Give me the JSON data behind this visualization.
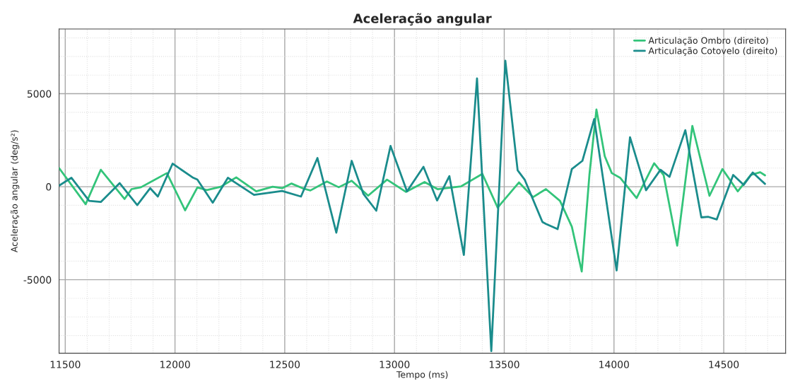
{
  "chart_data": {
    "type": "line",
    "title": "Aceleração angular",
    "xlabel": "Tempo (ms)",
    "ylabel": "Aceleração angular (deg/s²)",
    "xlim": [
      11472,
      14782
    ],
    "ylim": [
      -8950,
      8480
    ],
    "xticks": [
      11500,
      12000,
      12500,
      13000,
      13500,
      14000,
      14500
    ],
    "yticks": [
      -5000,
      0,
      5000
    ],
    "grid": true,
    "legend": "top right",
    "marker": "none",
    "line_style": "solid",
    "series": [
      {
        "name": "Articulação Ombro (direito)",
        "color": "#33c47a",
        "x": [
          11472,
          11593,
          11662,
          11770,
          11802,
          11845,
          11963,
          12046,
          12102,
          12145,
          12209,
          12279,
          12370,
          12445,
          12488,
          12531,
          12585,
          12617,
          12692,
          12746,
          12805,
          12880,
          12966,
          13052,
          13137,
          13196,
          13304,
          13400,
          13470,
          13567,
          13631,
          13690,
          13754,
          13808,
          13853,
          13888,
          13920,
          13958,
          13990,
          14028,
          14103,
          14183,
          14226,
          14288,
          14357,
          14435,
          14494,
          14564,
          14623,
          14666,
          14688
        ],
        "values": [
          1000,
          -940,
          910,
          -660,
          -130,
          -30,
          730,
          -1270,
          -40,
          -180,
          0,
          500,
          -250,
          0,
          -80,
          170,
          -100,
          -200,
          280,
          -30,
          320,
          -480,
          380,
          -280,
          250,
          -130,
          20,
          690,
          -1120,
          230,
          -560,
          -130,
          -760,
          -2150,
          -4560,
          630,
          4150,
          1640,
          730,
          480,
          -610,
          1260,
          630,
          -3170,
          3270,
          -490,
          950,
          -250,
          630,
          780,
          610
        ]
      },
      {
        "name": "Articulação Cotovelo (direito)",
        "color": "#1a8c8c",
        "x": [
          11472,
          11528,
          11609,
          11662,
          11748,
          11828,
          11887,
          11922,
          11989,
          12080,
          12102,
          12172,
          12241,
          12360,
          12488,
          12574,
          12649,
          12735,
          12805,
          12858,
          12917,
          12982,
          13057,
          13132,
          13194,
          13250,
          13316,
          13376,
          13441,
          13505,
          13561,
          13593,
          13674,
          13690,
          13743,
          13808,
          13856,
          13910,
          14012,
          14073,
          14146,
          14212,
          14253,
          14325,
          14398,
          14430,
          14468,
          14543,
          14591,
          14632,
          14688
        ],
        "values": [
          60,
          480,
          -760,
          -820,
          190,
          -990,
          -80,
          -530,
          1240,
          500,
          380,
          -860,
          480,
          -440,
          -230,
          -530,
          1540,
          -2470,
          1390,
          -380,
          -1290,
          2190,
          -250,
          1070,
          -740,
          570,
          -3670,
          5820,
          -8840,
          6770,
          880,
          380,
          -1900,
          -2000,
          -2280,
          950,
          1390,
          3640,
          -4500,
          2660,
          -190,
          910,
          530,
          3040,
          -1650,
          -1620,
          -1760,
          630,
          100,
          760,
          150
        ]
      }
    ]
  }
}
